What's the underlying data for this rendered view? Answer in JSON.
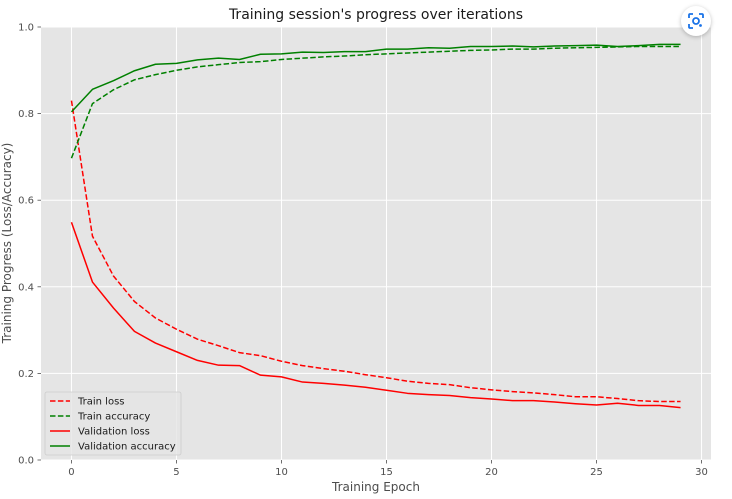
{
  "chart_data": {
    "type": "line",
    "title": "Training session's progress over iterations",
    "xlabel": "Training Epoch",
    "ylabel": "Training Progress (Loss/Accuracy)",
    "xlim": [
      -1.45,
      30.45
    ],
    "ylim": [
      0.0,
      1.0
    ],
    "x_ticks": [
      0,
      5,
      10,
      15,
      20,
      25,
      30
    ],
    "y_ticks": [
      0.0,
      0.2,
      0.4,
      0.6,
      0.8,
      1.0
    ],
    "grid": true,
    "legend_position": "lower-left",
    "x": [
      0,
      1,
      2,
      3,
      4,
      5,
      6,
      7,
      8,
      9,
      10,
      11,
      12,
      13,
      14,
      15,
      16,
      17,
      18,
      19,
      20,
      21,
      22,
      23,
      24,
      25,
      26,
      27,
      28,
      29
    ],
    "series": [
      {
        "name": "Train loss",
        "color": "#ff0000",
        "style": "dashed",
        "values": [
          0.83,
          0.517,
          0.425,
          0.366,
          0.328,
          0.302,
          0.279,
          0.264,
          0.248,
          0.241,
          0.228,
          0.218,
          0.211,
          0.205,
          0.197,
          0.19,
          0.182,
          0.177,
          0.174,
          0.167,
          0.162,
          0.158,
          0.155,
          0.151,
          0.146,
          0.146,
          0.142,
          0.137,
          0.135,
          0.135
        ]
      },
      {
        "name": "Train accuracy",
        "color": "#008000",
        "style": "dashed",
        "values": [
          0.697,
          0.823,
          0.855,
          0.878,
          0.89,
          0.9,
          0.908,
          0.913,
          0.918,
          0.92,
          0.925,
          0.928,
          0.931,
          0.933,
          0.936,
          0.938,
          0.94,
          0.942,
          0.944,
          0.946,
          0.947,
          0.949,
          0.949,
          0.951,
          0.952,
          0.953,
          0.954,
          0.955,
          0.955,
          0.955
        ]
      },
      {
        "name": "Validation loss",
        "color": "#ff0000",
        "style": "solid",
        "values": [
          0.549,
          0.411,
          0.351,
          0.297,
          0.27,
          0.25,
          0.23,
          0.219,
          0.218,
          0.196,
          0.192,
          0.18,
          0.177,
          0.173,
          0.168,
          0.161,
          0.154,
          0.151,
          0.149,
          0.144,
          0.141,
          0.137,
          0.137,
          0.134,
          0.13,
          0.127,
          0.131,
          0.126,
          0.126,
          0.121
        ]
      },
      {
        "name": "Validation accuracy",
        "color": "#008000",
        "style": "solid",
        "values": [
          0.804,
          0.856,
          0.876,
          0.899,
          0.914,
          0.916,
          0.924,
          0.928,
          0.925,
          0.937,
          0.938,
          0.942,
          0.941,
          0.943,
          0.943,
          0.949,
          0.949,
          0.952,
          0.951,
          0.955,
          0.955,
          0.956,
          0.954,
          0.956,
          0.957,
          0.958,
          0.955,
          0.957,
          0.96,
          0.96
        ]
      }
    ]
  },
  "lens_button": {
    "icon": "lens-icon",
    "color": "#1a73e8"
  }
}
